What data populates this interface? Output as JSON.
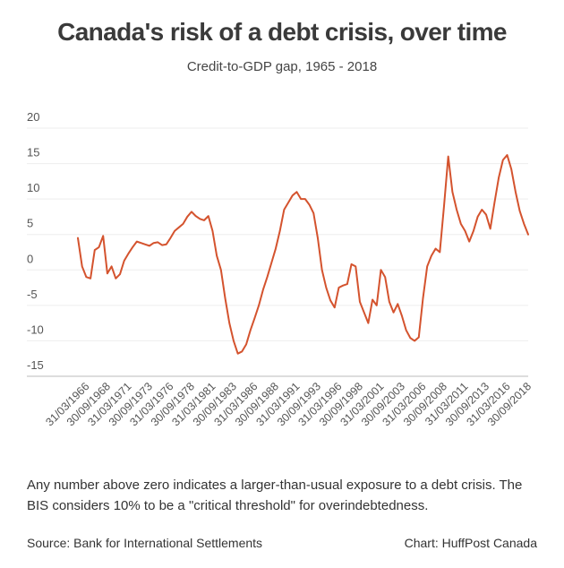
{
  "chart_data": {
    "type": "line",
    "title": "Canada's risk of a debt crisis, over time",
    "subtitle": "Credit-to-GDP gap, 1965 - 2018",
    "note": "Any number above zero indicates a larger-than-usual exposure to a debt crisis. The BIS considers 10% to be a \"critical threshold\" for overindebtedness.",
    "source": "Source: Bank for International Settlements",
    "credit": "Chart: HuffPost Canada",
    "color": "#d4532e",
    "grid": true,
    "ylim": [
      -15,
      20
    ],
    "yticks": [
      -15,
      -10,
      -5,
      0,
      5,
      10,
      15,
      20
    ],
    "categories": [
      null,
      null,
      "31/03/1966",
      null,
      null,
      null,
      null,
      "30/09/1968",
      null,
      null,
      null,
      null,
      "31/03/1971",
      null,
      null,
      null,
      null,
      "30/09/1973",
      null,
      null,
      null,
      null,
      "31/03/1976",
      null,
      null,
      null,
      null,
      "30/09/1978",
      null,
      null,
      null,
      null,
      "31/03/1981",
      null,
      null,
      null,
      null,
      "30/09/1983",
      null,
      null,
      null,
      null,
      "31/03/1986",
      null,
      null,
      null,
      null,
      "30/09/1988",
      null,
      null,
      null,
      null,
      "31/03/1991",
      null,
      null,
      null,
      null,
      "30/09/1993",
      null,
      null,
      null,
      null,
      "31/03/1996",
      null,
      null,
      null,
      null,
      "30/09/1998",
      null,
      null,
      null,
      null,
      "31/03/2001",
      null,
      null,
      null,
      null,
      "30/09/2003",
      null,
      null,
      null,
      null,
      "31/03/2006",
      null,
      null,
      null,
      null,
      "30/09/2008",
      null,
      null,
      null,
      null,
      "31/03/2011",
      null,
      null,
      null,
      null,
      "30/09/2013",
      null,
      null,
      null,
      null,
      "31/03/2016",
      null,
      null,
      null,
      null,
      "30/09/2018"
    ],
    "values": [
      4.5,
      0.5,
      -1,
      -1.2,
      2.8,
      3.2,
      4.8,
      -0.5,
      0.5,
      -1.2,
      -0.6,
      1.3,
      2.3,
      3.2,
      4,
      3.8,
      3.6,
      3.4,
      3.8,
      3.9,
      3.5,
      3.6,
      4.5,
      5.5,
      6,
      6.5,
      7.5,
      8.2,
      7.6,
      7.2,
      7,
      7.6,
      5.5,
      2,
      0,
      -4,
      -7.5,
      -10,
      -11.8,
      -11.5,
      -10.5,
      -8.5,
      -6.8,
      -5,
      -2.8,
      -1,
      1,
      3,
      5.5,
      8.5,
      9.5,
      10.5,
      11,
      10,
      10,
      9.2,
      8,
      4.5,
      0,
      -2.5,
      -4.3,
      -5.3,
      -2.5,
      -2.2,
      -2,
      0.8,
      0.5,
      -4.5,
      -6,
      -7.5,
      -4.2,
      -5,
      0,
      -1,
      -4.5,
      -6,
      -4.8,
      -6.5,
      -8.5,
      -9.6,
      -10,
      -9.5,
      -4,
      0.5,
      2,
      3,
      2.5,
      9,
      16,
      11,
      8.5,
      6.5,
      5.5,
      4,
      5.5,
      7.5,
      8.5,
      7.8,
      5.8,
      9.5,
      13,
      15.5,
      16.2,
      14.2,
      11,
      8.3,
      6.5,
      5
    ]
  }
}
